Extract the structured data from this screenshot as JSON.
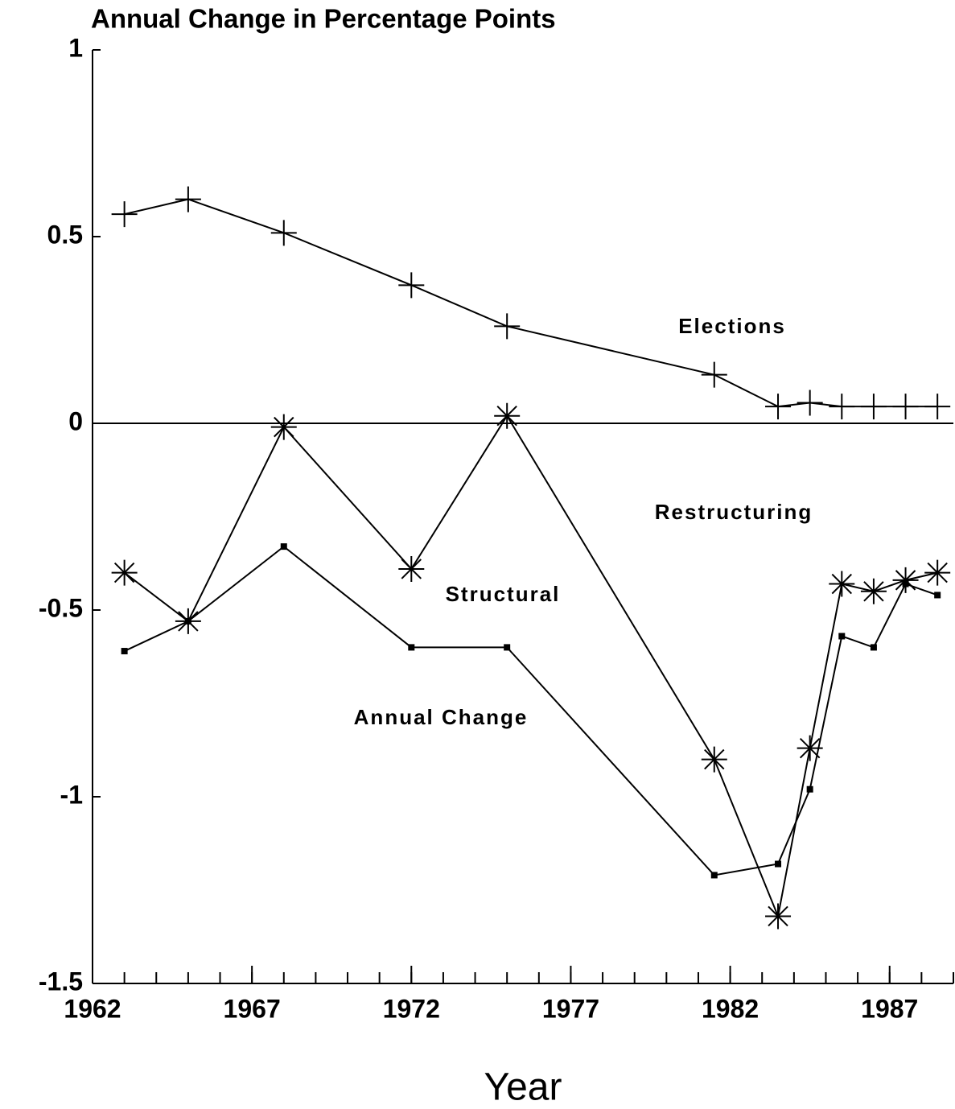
{
  "chart_data": {
    "type": "line",
    "title": "Annual Change in Percentage Points",
    "x_label": "Year",
    "x": [
      1963,
      1965,
      1968,
      1972,
      1975,
      1981.5,
      1983.5,
      1984.5,
      1985.5,
      1986.5,
      1987.5,
      1988.5
    ],
    "series": [
      {
        "name": "Elections",
        "color": "#000000",
        "marker": "plus",
        "values": [
          0.56,
          0.6,
          0.51,
          0.37,
          0.26,
          0.13,
          0.045,
          0.055,
          0.045,
          0.045,
          0.045,
          0.045
        ]
      },
      {
        "name": "Structural",
        "color": "#000000",
        "marker": "asterisk",
        "values": [
          -0.4,
          -0.53,
          -0.01,
          -0.39,
          0.02,
          -0.9,
          -1.32,
          -0.87,
          -0.43,
          -0.45,
          -0.42,
          -0.4
        ]
      },
      {
        "name": "Annual Change",
        "color": "#000000",
        "marker": "square",
        "values": [
          -0.61,
          -0.53,
          -0.33,
          -0.6,
          -0.6,
          -1.21,
          -1.18,
          -0.98,
          -0.57,
          -0.6,
          -0.43,
          -0.46
        ]
      }
    ],
    "annotations": [
      "Restructuring"
    ],
    "xlim": [
      1962,
      1989
    ],
    "xticks": [
      1962,
      1967,
      1972,
      1977,
      1982,
      1987
    ],
    "ylim": [
      -1.5,
      1
    ],
    "yticks": [
      1,
      0.5,
      0,
      -0.5,
      -1,
      -1.5
    ],
    "zero_line": true
  }
}
